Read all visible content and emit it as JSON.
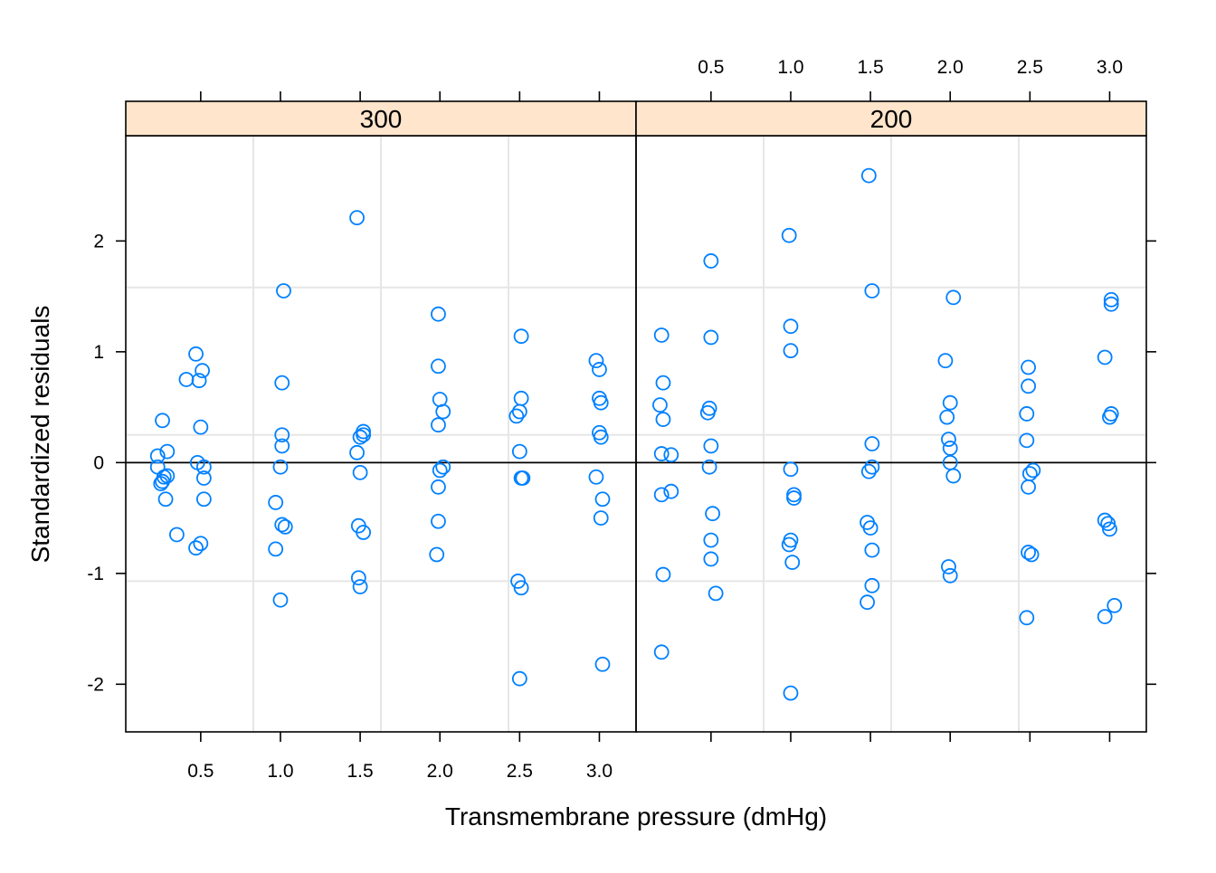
{
  "chart_data": {
    "type": "scatter",
    "xlabel": "Transmembrane pressure (dmHg)",
    "ylabel": "Standardized residuals",
    "xlim": [
      0.03,
      3.23
    ],
    "ylim": [
      -2.43,
      2.95
    ],
    "x_tick_labels": [
      "0.5",
      "1.0",
      "1.5",
      "2.0",
      "2.5",
      "3.0"
    ],
    "x_ticks": [
      0.5,
      1.0,
      1.5,
      2.0,
      2.5,
      3.0
    ],
    "y_tick_labels": [
      "-2",
      "-1",
      "0",
      "1",
      "2"
    ],
    "y_ticks": [
      -2,
      -1,
      0,
      1,
      2
    ],
    "grid": true,
    "grid_x": [
      0.83,
      1.63,
      2.43
    ],
    "grid_y": [
      -1.07,
      0.25,
      1.58
    ],
    "reference_line_y": 0,
    "colors": {
      "points": "#0080ff",
      "strip": "#ffe5cc",
      "grid": "#e6e6e6"
    },
    "panels": [
      {
        "label": "300",
        "points": [
          [
            0.23,
            0.06
          ],
          [
            0.26,
            0.38
          ],
          [
            0.29,
            0.1
          ],
          [
            0.23,
            -0.04
          ],
          [
            0.27,
            -0.13
          ],
          [
            0.29,
            -0.12
          ],
          [
            0.26,
            -0.17
          ],
          [
            0.25,
            -0.19
          ],
          [
            0.28,
            -0.33
          ],
          [
            0.35,
            -0.65
          ],
          [
            0.41,
            0.75
          ],
          [
            0.47,
            0.98
          ],
          [
            0.49,
            0.74
          ],
          [
            0.51,
            0.83
          ],
          [
            0.5,
            0.32
          ],
          [
            0.48,
            0.0
          ],
          [
            0.52,
            -0.04
          ],
          [
            0.52,
            -0.14
          ],
          [
            0.52,
            -0.33
          ],
          [
            0.5,
            -0.73
          ],
          [
            0.47,
            -0.77
          ],
          [
            1.02,
            1.55
          ],
          [
            1.01,
            0.72
          ],
          [
            1.01,
            0.25
          ],
          [
            1.01,
            0.15
          ],
          [
            1.0,
            -0.04
          ],
          [
            0.97,
            -0.36
          ],
          [
            1.01,
            -0.56
          ],
          [
            1.03,
            -0.58
          ],
          [
            0.97,
            -0.78
          ],
          [
            1.0,
            -1.24
          ],
          [
            1.48,
            2.21
          ],
          [
            1.52,
            0.28
          ],
          [
            1.52,
            0.25
          ],
          [
            1.5,
            0.23
          ],
          [
            1.48,
            0.09
          ],
          [
            1.5,
            -0.09
          ],
          [
            1.49,
            -0.57
          ],
          [
            1.52,
            -0.63
          ],
          [
            1.49,
            -1.04
          ],
          [
            1.5,
            -1.12
          ],
          [
            1.99,
            1.34
          ],
          [
            1.99,
            0.87
          ],
          [
            2.0,
            0.57
          ],
          [
            2.02,
            0.46
          ],
          [
            1.99,
            0.34
          ],
          [
            2.02,
            -0.04
          ],
          [
            2.0,
            -0.07
          ],
          [
            1.99,
            -0.22
          ],
          [
            1.99,
            -0.53
          ],
          [
            1.98,
            -0.83
          ],
          [
            2.51,
            1.14
          ],
          [
            2.51,
            0.58
          ],
          [
            2.5,
            0.46
          ],
          [
            2.48,
            0.42
          ],
          [
            2.5,
            0.1
          ],
          [
            2.52,
            -0.14
          ],
          [
            2.51,
            -0.14
          ],
          [
            2.49,
            -1.07
          ],
          [
            2.51,
            -1.13
          ],
          [
            2.5,
            -1.95
          ],
          [
            2.98,
            0.92
          ],
          [
            3.0,
            0.84
          ],
          [
            3.0,
            0.58
          ],
          [
            3.01,
            0.54
          ],
          [
            3.0,
            0.27
          ],
          [
            3.01,
            0.23
          ],
          [
            2.98,
            -0.13
          ],
          [
            3.02,
            -0.33
          ],
          [
            3.01,
            -0.5
          ],
          [
            3.02,
            -1.82
          ]
        ]
      },
      {
        "label": "200",
        "points": [
          [
            0.19,
            1.15
          ],
          [
            0.2,
            0.72
          ],
          [
            0.18,
            0.52
          ],
          [
            0.2,
            0.39
          ],
          [
            0.19,
            0.08
          ],
          [
            0.25,
            0.07
          ],
          [
            0.19,
            -0.29
          ],
          [
            0.25,
            -0.26
          ],
          [
            0.2,
            -1.01
          ],
          [
            0.19,
            -1.71
          ],
          [
            0.5,
            1.82
          ],
          [
            0.5,
            1.13
          ],
          [
            0.49,
            0.49
          ],
          [
            0.48,
            0.45
          ],
          [
            0.5,
            0.15
          ],
          [
            0.49,
            -0.04
          ],
          [
            0.51,
            -0.46
          ],
          [
            0.5,
            -0.7
          ],
          [
            0.5,
            -0.87
          ],
          [
            0.53,
            -1.18
          ],
          [
            0.99,
            2.05
          ],
          [
            1.0,
            1.23
          ],
          [
            1.0,
            1.01
          ],
          [
            1.0,
            -0.06
          ],
          [
            1.02,
            -0.29
          ],
          [
            1.02,
            -0.32
          ],
          [
            1.0,
            -0.7
          ],
          [
            0.99,
            -0.74
          ],
          [
            1.01,
            -0.9
          ],
          [
            1.0,
            -2.08
          ],
          [
            1.49,
            2.59
          ],
          [
            1.51,
            1.55
          ],
          [
            1.51,
            0.17
          ],
          [
            1.51,
            -0.04
          ],
          [
            1.49,
            -0.08
          ],
          [
            1.48,
            -0.54
          ],
          [
            1.5,
            -0.59
          ],
          [
            1.51,
            -0.79
          ],
          [
            1.51,
            -1.11
          ],
          [
            1.48,
            -1.26
          ],
          [
            2.02,
            1.49
          ],
          [
            1.97,
            0.92
          ],
          [
            2.0,
            0.54
          ],
          [
            1.98,
            0.41
          ],
          [
            1.99,
            0.21
          ],
          [
            2.0,
            0.13
          ],
          [
            2.0,
            0.0
          ],
          [
            2.02,
            -0.12
          ],
          [
            1.99,
            -0.94
          ],
          [
            2.0,
            -1.02
          ],
          [
            2.49,
            0.86
          ],
          [
            2.49,
            0.69
          ],
          [
            2.48,
            0.44
          ],
          [
            2.48,
            0.2
          ],
          [
            2.52,
            -0.07
          ],
          [
            2.5,
            -0.1
          ],
          [
            2.49,
            -0.22
          ],
          [
            2.49,
            -0.81
          ],
          [
            2.51,
            -0.83
          ],
          [
            2.48,
            -1.4
          ],
          [
            3.01,
            1.47
          ],
          [
            3.01,
            1.43
          ],
          [
            2.97,
            0.95
          ],
          [
            3.01,
            0.44
          ],
          [
            3.0,
            0.41
          ],
          [
            2.97,
            -0.52
          ],
          [
            2.99,
            -0.55
          ],
          [
            3.0,
            -0.6
          ],
          [
            3.03,
            -1.29
          ],
          [
            2.97,
            -1.39
          ]
        ]
      }
    ]
  }
}
